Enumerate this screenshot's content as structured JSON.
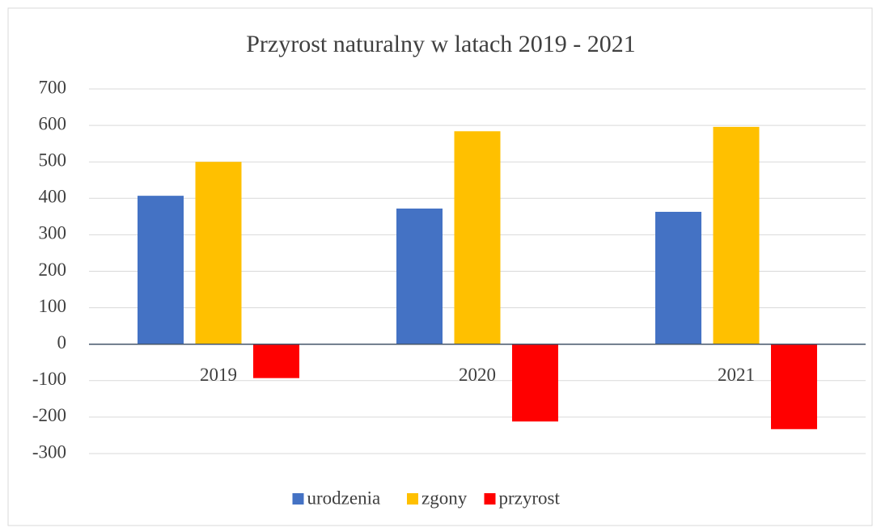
{
  "chart_data": {
    "type": "bar",
    "title": "Przyrost naturalny w latach 2019 - 2021",
    "categories": [
      "2019",
      "2020",
      "2021"
    ],
    "series": [
      {
        "name": "urodzenia",
        "color": "#4472c4",
        "values": [
          407,
          372,
          363
        ]
      },
      {
        "name": "zgony",
        "color": "#ffc000",
        "values": [
          500,
          584,
          596
        ]
      },
      {
        "name": "przyrost",
        "color": "#ff0000",
        "values": [
          -93,
          -212,
          -233
        ]
      }
    ],
    "ylim": [
      -300,
      700
    ],
    "yticks": [
      -300,
      -200,
      -100,
      0,
      100,
      200,
      300,
      400,
      500,
      600,
      700
    ],
    "grid": true,
    "legend": "bottom"
  }
}
